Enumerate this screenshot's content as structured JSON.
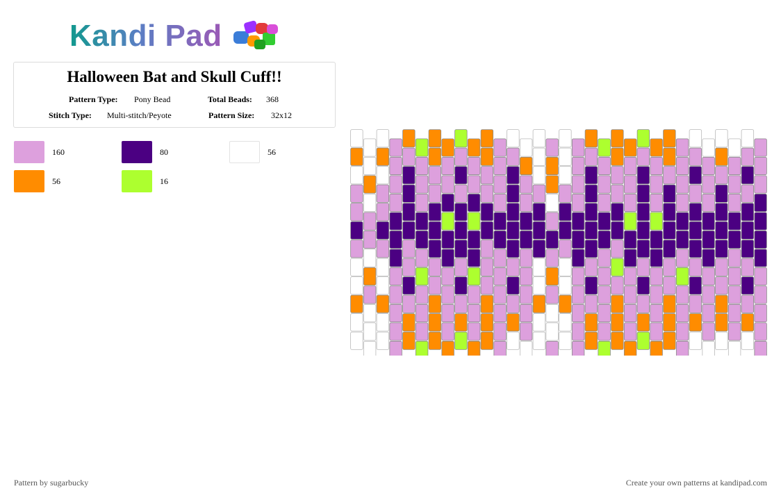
{
  "brand": {
    "name": "Kandi Pad"
  },
  "pattern": {
    "title": "Halloween Bat and Skull Cuff!!",
    "type_label": "Pattern Type:",
    "type_value": "Pony Bead",
    "total_label": "Total Beads:",
    "total_value": "368",
    "stitch_label": "Stitch Type:",
    "stitch_value": "Multi-stitch/Peyote",
    "size_label": "Pattern Size:",
    "size_value": "32x12"
  },
  "palette": [
    {
      "key": "L",
      "color": "#dda0dd",
      "count": "160"
    },
    {
      "key": "D",
      "color": "#4b0082",
      "count": "80"
    },
    {
      "key": "W",
      "color": "#ffffff",
      "count": "56"
    },
    {
      "key": "O",
      "color": "#ff8c00",
      "count": "56"
    },
    {
      "key": "G",
      "color": "#adff2f",
      "count": "16"
    }
  ],
  "grid": {
    "columns": 32,
    "rows_visible": 12,
    "rows": [
      "WWWLOGOOGOOLWWWLWLOGOOGOOLWWWWWL",
      "OWOLLLOLLLOLLOWOWLLLOLLLOLLLOLLL",
      "WOWLDLLLDLLLDLWOWLDLLLDLLLDLLLDL",
      "LWLLDLLDLDLLDLLWLLDLLLDLDLLLDLLD",
      "LLLDDDDGDGDDDDDLDDDDDGDGDDDDDDDD",
      "DLDDDDDDDDDDDDDDDDDDDDDDDDDDDDDD",
      "LWLDLLDDDDLLDLDLLDDLLDDDDLDDDLDD",
      "WOWLLGLLLGLLLLWOWLLLGLLLLGLLLLLL",
      "WLWLDLLLDLLLDLWLWLDLLLDLLLDLLLDL",
      "OWOLLLOLLLOLLLOWOLLLOLLLOLLLOLLL",
      "WWWLOLOLOLOLOLWWWLOLOLOLOLOLOLOL",
      "WWWLOGOOGOOLWWWLWLOGOOGOOLWWWWWL"
    ]
  },
  "footer": {
    "credit": "Pattern by sugarbucky",
    "cta": "Create your own patterns at kandipad.com"
  }
}
